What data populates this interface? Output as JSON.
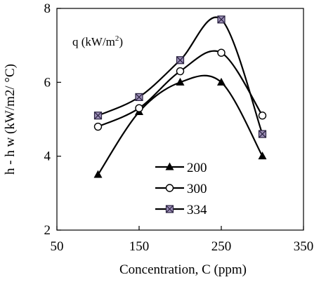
{
  "chart_data": {
    "type": "line",
    "xlabel": "Concentration, C (ppm)",
    "ylabel": "h - h w (kW/m2/ °C)",
    "xlim": [
      50,
      350
    ],
    "ylim": [
      2,
      8
    ],
    "xticks": [
      50,
      150,
      250,
      350
    ],
    "yticks": [
      2,
      4,
      6,
      8
    ],
    "xtick_labels": [
      "50",
      "150",
      "250",
      "350"
    ],
    "ytick_labels": [
      "2",
      "4",
      "6",
      "8"
    ],
    "grid": false,
    "legend_position": "bottom-center",
    "annotation": {
      "text": "q (kW/m",
      "sup": "2",
      "tail": ")"
    },
    "series": [
      {
        "name": "200",
        "marker": "triangle",
        "x": [
          100,
          150,
          200,
          250,
          300
        ],
        "y": [
          3.5,
          5.2,
          6.0,
          6.0,
          4.0
        ]
      },
      {
        "name": "300",
        "marker": "circle",
        "x": [
          100,
          150,
          200,
          250,
          300
        ],
        "y": [
          4.8,
          5.3,
          6.3,
          6.8,
          5.1
        ]
      },
      {
        "name": "334",
        "marker": "x-square",
        "x": [
          100,
          150,
          200,
          250,
          300
        ],
        "y": [
          5.1,
          5.6,
          6.6,
          7.7,
          4.6
        ]
      }
    ]
  }
}
